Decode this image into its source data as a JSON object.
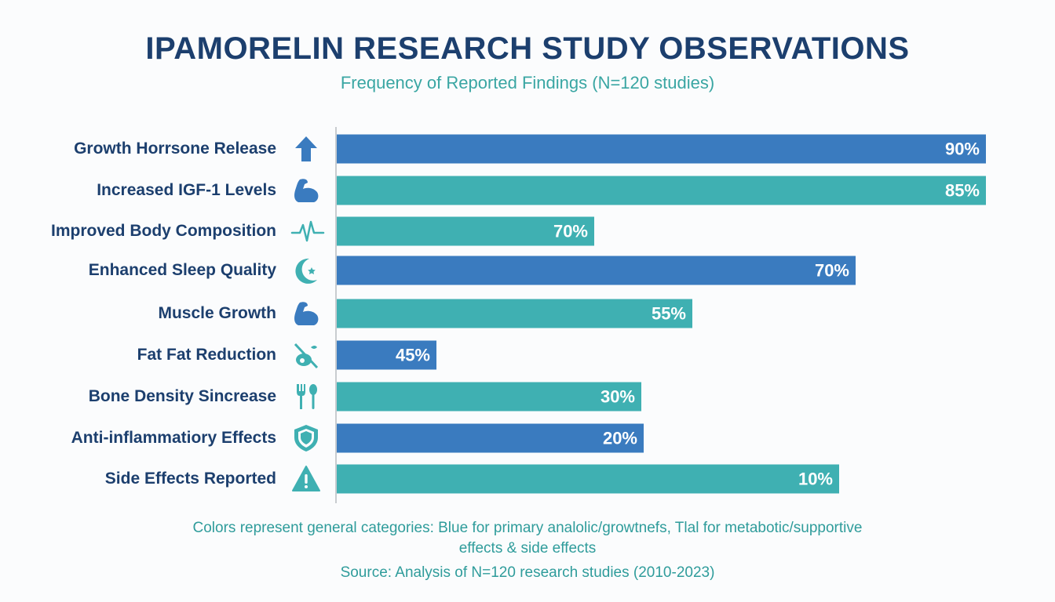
{
  "colors": {
    "blue": "#3a7bbf",
    "teal": "#3fb0b2",
    "title": "#1c3f6e",
    "subtitle": "#3aa6a3"
  },
  "chart_data": {
    "type": "bar",
    "orientation": "horizontal",
    "title": "IPAMORELIN RESEARCH STUDY OBSERVATIONS",
    "subtitle": "Frequency of Reported Findings (N=120 studies)",
    "xlabel": "",
    "ylabel": "",
    "unit": "%",
    "categories": [
      "Growth Horrsone Release",
      "Increased IGF-1 Levels",
      "Improved Body Composition",
      "Enhanced Sleep Quality",
      "Muscle Growth",
      "Fat Fat Reduction",
      "Bone Density Sincrease",
      "Anti-inflammatiory Effects",
      "Side Effects Reported"
    ],
    "values": [
      90,
      85,
      70,
      70,
      55,
      45,
      30,
      20,
      10
    ],
    "value_labels": [
      "90%",
      "85%",
      "70%",
      "70%",
      "55%",
      "45%",
      "30%",
      "20%",
      "10%"
    ],
    "bar_colors": [
      "blue",
      "teal",
      "teal",
      "blue",
      "teal",
      "blue",
      "teal",
      "blue",
      "teal"
    ],
    "icons": [
      "arrow-up-icon",
      "flexed-arm-icon",
      "heartbeat-icon",
      "moon-star-icon",
      "flexed-arm-icon",
      "no-fat-icon",
      "fork-spoon-icon",
      "shield-icon",
      "warning-icon"
    ],
    "grid": false,
    "legend": "none"
  },
  "footer": {
    "note_line1": "Colors represent general categories:  Blue for primary analolic/growtnefs, Tlal for metabotic/supportive",
    "note_line2": "effects & side effects",
    "source": "Source: Analysis of N=120 research studies (2010-2023)"
  }
}
